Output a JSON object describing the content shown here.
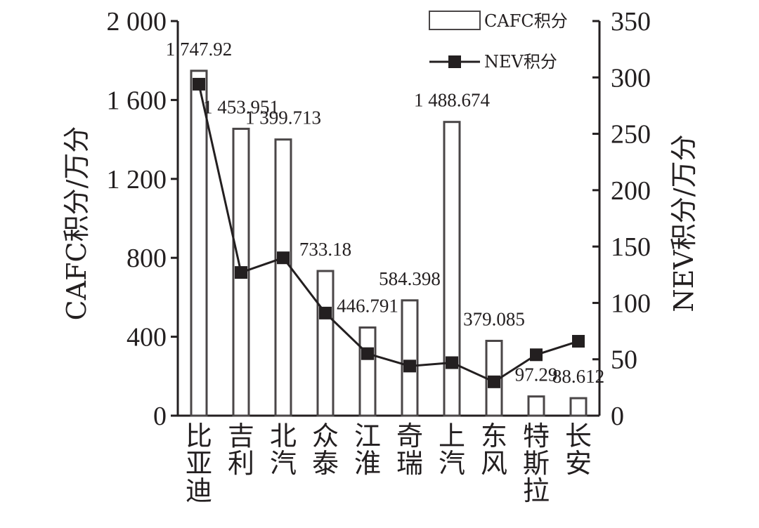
{
  "chart_data": {
    "type": "bar",
    "categories": [
      "比亚迪",
      "吉利",
      "北汽",
      "众泰",
      "江淮",
      "奇瑞",
      "上汽",
      "东风",
      "特斯拉",
      "长安"
    ],
    "series": [
      {
        "name": "CAFC积分",
        "type": "bar",
        "axis": "left",
        "values": [
          1747.92,
          1453.951,
          1399.713,
          733.18,
          446.791,
          584.398,
          1488.674,
          379.085,
          97.29,
          88.612
        ],
        "labels": [
          "1 747.92",
          "1 453.951",
          "1 399.713",
          "733.18",
          "446.791",
          "584.398",
          "1 488.674",
          "379.085",
          "97.29",
          "88.612"
        ]
      },
      {
        "name": "NEV积分",
        "type": "line",
        "axis": "right",
        "values": [
          294,
          127,
          140,
          91,
          55,
          44,
          47,
          30,
          54,
          66
        ]
      }
    ],
    "ylabel_left": "CAFC积分/万分",
    "ylabel_right": "NEV积分/万分",
    "ylim_left": [
      0,
      2000
    ],
    "ylim_right": [
      0,
      350
    ],
    "yticks_left": [
      "0",
      "400",
      "800",
      "1 200",
      "1 600",
      "2 000"
    ],
    "yticks_right": [
      "0",
      "50",
      "100",
      "150",
      "200",
      "250",
      "300",
      "350"
    ],
    "legend_position": "top-right",
    "grid": false,
    "colors": {
      "ink": "#231f20",
      "bar_fill": "#ffffff",
      "bar_stroke": "#4a4647"
    }
  }
}
